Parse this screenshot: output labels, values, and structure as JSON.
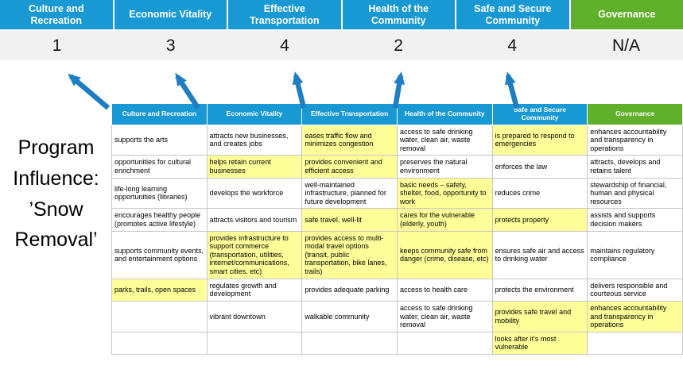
{
  "colors": {
    "blue": "#1899d3",
    "green": "#61b02c",
    "yellow": "#ffff99",
    "score_bg": "#f1f1f2",
    "arrow": "#1f7dc2",
    "border": "#c6c6c6"
  },
  "title": "Program Influence: ’Snow Removal’",
  "summary": {
    "pillars": [
      {
        "label": "Culture and Recreation",
        "score": "1",
        "type": "blue"
      },
      {
        "label": "Economic Vitality",
        "score": "3",
        "type": "blue"
      },
      {
        "label": "Effective Transportation",
        "score": "4",
        "type": "blue"
      },
      {
        "label": "Health of the Community",
        "score": "2",
        "type": "blue"
      },
      {
        "label": "Safe and Secure Community",
        "score": "4",
        "type": "blue"
      },
      {
        "label": "Governance",
        "score": "N/A",
        "type": "green"
      }
    ]
  },
  "matrix": {
    "headers": [
      {
        "label": "Culture and Recreation",
        "type": "blue"
      },
      {
        "label": "Economic Vitality",
        "type": "blue"
      },
      {
        "label": "Effective Transportation",
        "type": "blue"
      },
      {
        "label": "Health of the Community",
        "type": "blue"
      },
      {
        "label": "Safe and Secure Community",
        "type": "blue"
      },
      {
        "label": "Governance",
        "type": "green"
      }
    ],
    "rows": [
      [
        {
          "text": "supports the arts",
          "highlight": false
        },
        {
          "text": "attracts new businesses, and creates jobs",
          "highlight": false
        },
        {
          "text": "eases traffic flow and minimizes congestion",
          "highlight": true
        },
        {
          "text": "access to safe drinking water, clean air, waste removal",
          "highlight": false
        },
        {
          "text": "is prepared to respond to emergencies",
          "highlight": true
        },
        {
          "text": "enhances accountability and transparency in operations",
          "highlight": false
        }
      ],
      [
        {
          "text": "opportunities for cultural enrichment",
          "highlight": false
        },
        {
          "text": "helps retain current businesses",
          "highlight": true
        },
        {
          "text": "provides convenient and efficient access",
          "highlight": true
        },
        {
          "text": "preserves the natural environment",
          "highlight": false
        },
        {
          "text": "enforces the law",
          "highlight": false
        },
        {
          "text": "attracts, develops and retains talent",
          "highlight": false
        }
      ],
      [
        {
          "text": "life-long learning opportunities (libraries)",
          "highlight": false
        },
        {
          "text": "develops the workforce",
          "highlight": false
        },
        {
          "text": "well-maintained infrastructure, planned for future development",
          "highlight": false
        },
        {
          "text": "basic needs – safety, shelter, food, opportunity to work",
          "highlight": true
        },
        {
          "text": "reduces crime",
          "highlight": false
        },
        {
          "text": "stewardship of financial, human and physical resources",
          "highlight": false
        }
      ],
      [
        {
          "text": "encourages healthy people (promotes active lifestyle)",
          "highlight": false
        },
        {
          "text": "attracts visitors and tourism",
          "highlight": false
        },
        {
          "text": "safe travel, well-lit",
          "highlight": true
        },
        {
          "text": "cares for the vulnerable (elderly, youth)",
          "highlight": true
        },
        {
          "text": "protects property",
          "highlight": true
        },
        {
          "text": "assists and supports decision makers",
          "highlight": false
        }
      ],
      [
        {
          "text": "supports community events, and entertainment options",
          "highlight": false
        },
        {
          "text": "provides infrastructure to support commerce (transportation, utilities, internet/communications, smart cities, etc)",
          "highlight": true
        },
        {
          "text": "provides access to multi-modal travel options (transit, public transportation, bike lanes, trails)",
          "highlight": true
        },
        {
          "text": "keeps community safe from danger (crime, disease, etc)",
          "highlight": true
        },
        {
          "text": "ensures safe air and access to drinking water",
          "highlight": false
        },
        {
          "text": "maintains regulatory compliance",
          "highlight": false
        }
      ],
      [
        {
          "text": "parks, trails, open spaces",
          "highlight": true
        },
        {
          "text": "regulates growth and development",
          "highlight": false
        },
        {
          "text": "provides adequate parking",
          "highlight": false
        },
        {
          "text": "access to health care",
          "highlight": false
        },
        {
          "text": "protects the environment",
          "highlight": false
        },
        {
          "text": "delivers responsible and courteous service",
          "highlight": false
        }
      ],
      [
        {
          "text": "",
          "highlight": false
        },
        {
          "text": "vibrant downtown",
          "highlight": false
        },
        {
          "text": "walkable community",
          "highlight": false
        },
        {
          "text": "access to safe drinking water, clean air, waste removal",
          "highlight": false
        },
        {
          "text": "provides safe travel and mobility",
          "highlight": true
        },
        {
          "text": "enhances accountability and transparency in operations",
          "highlight": true
        }
      ],
      [
        {
          "text": "",
          "highlight": false
        },
        {
          "text": "",
          "highlight": false
        },
        {
          "text": "",
          "highlight": false
        },
        {
          "text": "",
          "highlight": false
        },
        {
          "text": "looks after it's most vulnerable",
          "highlight": true
        },
        {
          "text": "",
          "highlight": false
        }
      ]
    ]
  }
}
